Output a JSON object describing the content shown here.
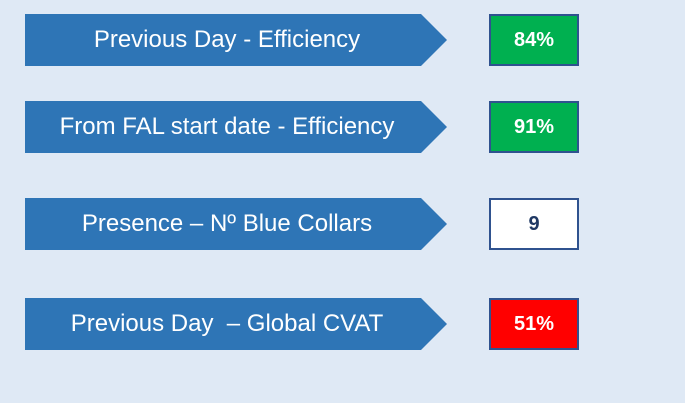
{
  "kpis": [
    {
      "label": "Previous Day - Efficiency",
      "value": "84%",
      "status_color": "#00b050"
    },
    {
      "label": "From FAL start date - Efficiency",
      "value": "91%",
      "status_color": "#00b050"
    },
    {
      "label": "Presence – Nº Blue Collars",
      "value": "9",
      "status_color": "#ffffff"
    },
    {
      "label": "Previous Day  – Global CVAT",
      "value": "51%",
      "status_color": "#ff0000"
    }
  ],
  "colors": {
    "arrow": "#2e75b6",
    "background": "#dfe9f5",
    "box_border": "#2f528f"
  }
}
